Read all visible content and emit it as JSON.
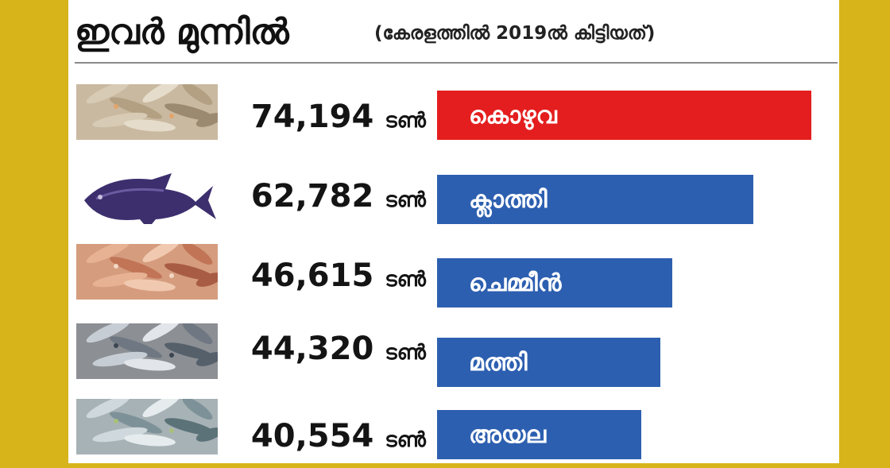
{
  "header": {
    "title": "ഇവർ മുന്നിൽ",
    "subtitle": "(കേരളത്തിൽ 2019ൽ കിട്ടിയത്)"
  },
  "colors": {
    "frame": "#d6b41a",
    "top_bar": "#e41e1e",
    "other_bars": "#2d5fb0"
  },
  "chart_data": {
    "type": "bar",
    "orientation": "horizontal",
    "title": "ഇവർ മുന്നിൽ",
    "subtitle": "(കേരളത്തിൽ 2019ൽ കിട്ടിയത്)",
    "unit": "ടൺ",
    "categories": [
      "കൊഴുവ",
      "ക്ലാത്തി",
      "ചെമ്മീൻ",
      "മത്തി",
      "അയല"
    ],
    "values": [
      74194,
      62782,
      46615,
      44320,
      40554
    ],
    "value_labels": [
      "74,194",
      "62,782",
      "46,615",
      "44,320",
      "40,554"
    ],
    "icons": [
      "anchovy-photo",
      "triggerfish-photo",
      "prawn-photo",
      "sardine-photo",
      "mackerel-photo"
    ],
    "xlim": [
      0,
      76000
    ]
  }
}
